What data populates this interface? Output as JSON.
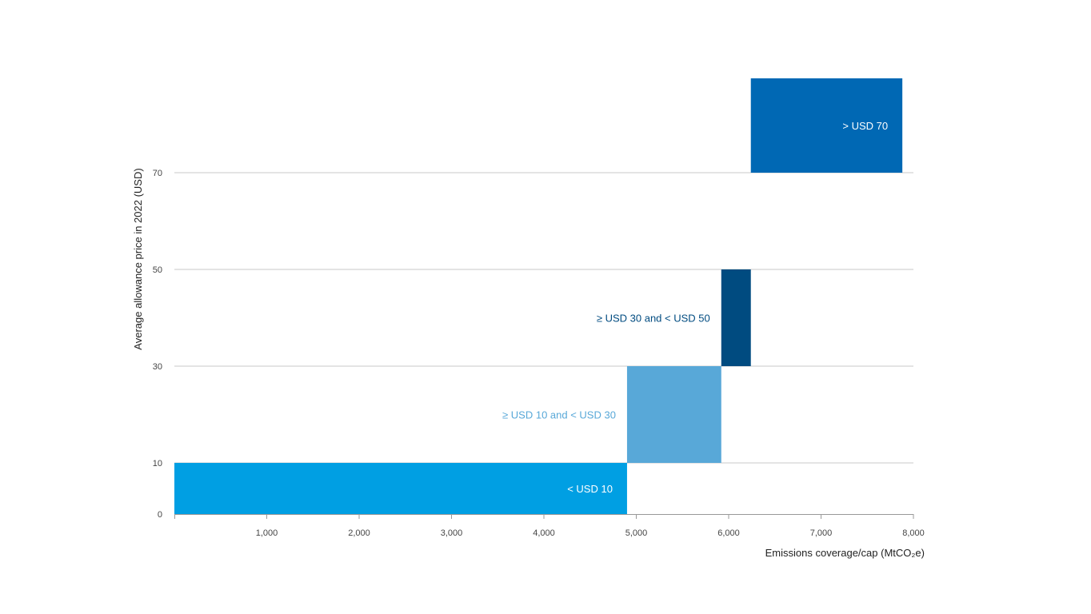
{
  "chart_data": {
    "type": "bar",
    "title": "",
    "xlabel": "Emissions coverage/cap (MtCO₂e)",
    "ylabel": "Average allowance price in 2022 (USD)",
    "xlim": [
      0,
      8000
    ],
    "y_ticks": [
      0,
      10,
      30,
      50,
      70
    ],
    "x_ticks": [
      1000,
      2000,
      3000,
      4000,
      5000,
      6000,
      7000,
      8000
    ],
    "x_tick_labels": [
      "1,000",
      "2,000",
      "3,000",
      "4,000",
      "5,000",
      "6,000",
      "7,000",
      "8,000"
    ],
    "grid": true,
    "bands": [
      {
        "label": "< USD 10",
        "x_start": 0,
        "x_end": 4900,
        "y_start": 0,
        "y_end": 10,
        "color": "#009fe3",
        "label_color": "#ffffff",
        "label_side": "inside-right"
      },
      {
        "label": "≥ USD 10 and < USD 30",
        "x_start": 4900,
        "x_end": 5920,
        "y_start": 10,
        "y_end": 30,
        "color": "#58a8d8",
        "label_color": "#58a8d8",
        "label_side": "outside-left"
      },
      {
        "label": "≥ USD 30 and < USD 50",
        "x_start": 5920,
        "x_end": 6240,
        "y_start": 30,
        "y_end": 50,
        "color": "#004b80",
        "label_color": "#004b80",
        "label_side": "outside-left"
      },
      {
        "label": "> USD 70",
        "x_start": 6240,
        "x_end": 7880,
        "y_start": 70,
        "y_end": 90,
        "color": "#0068b4",
        "label_color": "#ffffff",
        "label_side": "inside-right"
      }
    ]
  }
}
